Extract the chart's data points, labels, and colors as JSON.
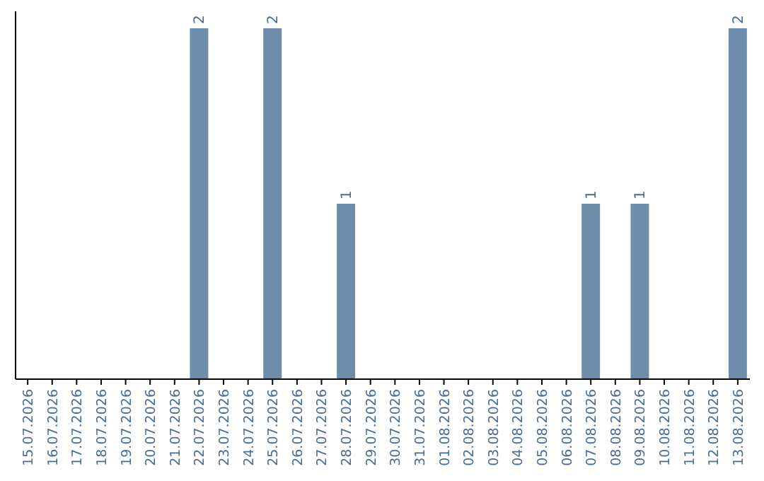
{
  "chart_data": {
    "type": "bar",
    "categories": [
      "15.07.2026",
      "16.07.2026",
      "17.07.2026",
      "18.07.2026",
      "19.07.2026",
      "20.07.2026",
      "21.07.2026",
      "22.07.2026",
      "23.07.2026",
      "24.07.2026",
      "25.07.2026",
      "26.07.2026",
      "27.07.2026",
      "28.07.2026",
      "29.07.2026",
      "30.07.2026",
      "31.07.2026",
      "01.08.2026",
      "02.08.2026",
      "03.08.2026",
      "04.08.2026",
      "05.08.2026",
      "06.08.2026",
      "07.08.2026",
      "08.08.2026",
      "09.08.2026",
      "10.08.2026",
      "11.08.2026",
      "12.08.2026",
      "13.08.2026"
    ],
    "values": [
      0,
      0,
      0,
      0,
      0,
      0,
      0,
      2,
      0,
      0,
      2,
      0,
      0,
      1,
      0,
      0,
      0,
      0,
      0,
      0,
      0,
      0,
      0,
      1,
      0,
      1,
      0,
      0,
      0,
      2
    ],
    "value_labels": [
      null,
      null,
      null,
      null,
      null,
      null,
      null,
      "2",
      null,
      null,
      "2",
      null,
      null,
      "1",
      null,
      null,
      null,
      null,
      null,
      null,
      null,
      null,
      null,
      "1",
      null,
      "1",
      null,
      null,
      null,
      "2"
    ],
    "color": "#6d8dab"
  }
}
